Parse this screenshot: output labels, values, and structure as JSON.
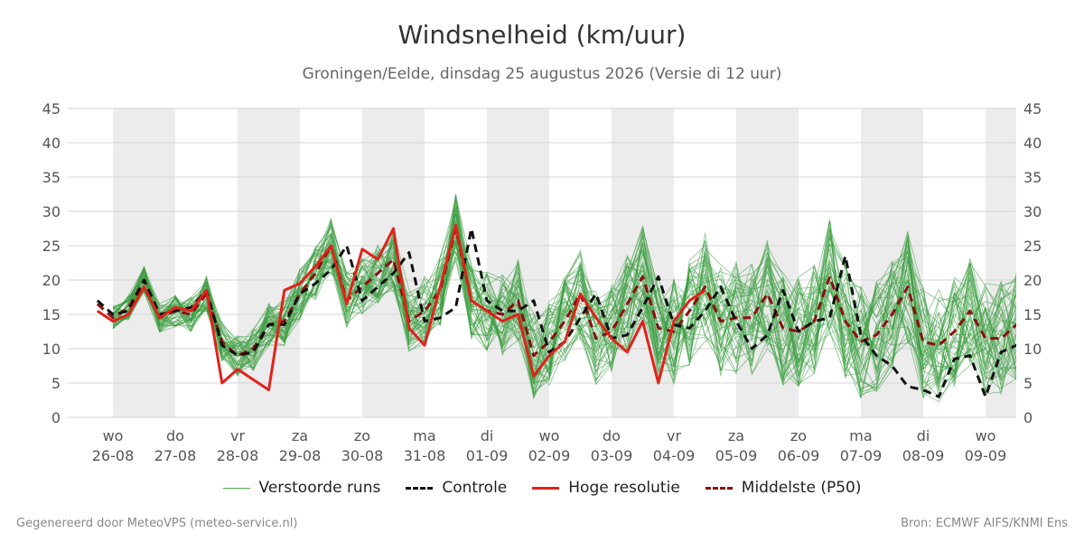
{
  "chart_data": {
    "type": "line",
    "title": "Windsnelheid (km/uur)",
    "subtitle": "Groningen/Eelde, dinsdag 25 augustus 2026 (Versie di 12 uur)",
    "ylim": [
      0,
      45
    ],
    "yticks": [
      0,
      5,
      10,
      15,
      20,
      25,
      30,
      35,
      40,
      45
    ],
    "xlim": [
      -0.25,
      14.98
    ],
    "grid": true,
    "shaded_weekend_bands": [
      [
        0,
        1
      ],
      [
        2,
        3
      ],
      [
        4,
        5
      ],
      [
        6,
        7
      ],
      [
        8,
        9
      ],
      [
        10,
        11
      ],
      [
        12,
        13
      ],
      [
        14,
        14.98
      ]
    ],
    "x_ticks": [
      {
        "day": "wo",
        "date": "26-08"
      },
      {
        "day": "do",
        "date": "27-08"
      },
      {
        "day": "vr",
        "date": "28-08"
      },
      {
        "day": "za",
        "date": "29-08"
      },
      {
        "day": "zo",
        "date": "30-08"
      },
      {
        "day": "ma",
        "date": "31-08"
      },
      {
        "day": "di",
        "date": "01-09"
      },
      {
        "day": "wo",
        "date": "02-09"
      },
      {
        "day": "do",
        "date": "03-09"
      },
      {
        "day": "vr",
        "date": "04-09"
      },
      {
        "day": "za",
        "date": "05-09"
      },
      {
        "day": "zo",
        "date": "06-09"
      },
      {
        "day": "ma",
        "date": "07-09"
      },
      {
        "day": "di",
        "date": "08-09"
      },
      {
        "day": "wo",
        "date": "09-09"
      }
    ],
    "x_step": 0.25,
    "x_start": -0.25,
    "series": [
      {
        "name": "Controle",
        "color": "#111111",
        "style": "dashed",
        "values": [
          17,
          15,
          15.5,
          20,
          15,
          15.5,
          16,
          18.5,
          10.5,
          9,
          9.5,
          13.5,
          13.5,
          18,
          19.5,
          21.5,
          25,
          17,
          19,
          21,
          24,
          14,
          14.5,
          16,
          27.5,
          17,
          15.5,
          15.5,
          17,
          9.5,
          11,
          14.5,
          18,
          11.5,
          12,
          16,
          20.5,
          13.5,
          13,
          15.5,
          19,
          14,
          10,
          12,
          18.5,
          12.5,
          14,
          14.5,
          23.5,
          12,
          9,
          7.5,
          4.5,
          4,
          3,
          8.5,
          9,
          3,
          9.5,
          10.5,
          10
        ]
      },
      {
        "name": "Hoge resolutie",
        "color": "#e0221b",
        "style": "solid",
        "values": [
          15.5,
          14,
          15,
          19,
          14.5,
          16,
          15.5,
          18.5,
          5,
          7,
          5.5,
          4,
          18.5,
          19.5,
          22,
          25,
          16.5,
          24.5,
          23,
          27.5,
          13,
          10.5,
          19,
          28,
          17,
          15.5,
          14,
          15,
          6,
          9,
          11,
          18,
          14.5,
          11.5,
          9.5,
          14,
          5,
          14,
          17,
          18.5
        ]
      },
      {
        "name": "Middelste (P50)",
        "color": "#8b1010",
        "style": "dashed",
        "values": [
          16.5,
          14.5,
          16,
          20,
          14.5,
          15.5,
          15,
          18,
          11,
          9,
          10,
          13.5,
          14,
          18,
          21,
          25,
          17,
          19,
          21,
          23,
          14,
          15.5,
          18.5,
          27.5,
          17,
          15.5,
          15,
          17,
          9,
          11,
          14,
          18,
          11.5,
          12.5,
          16.5,
          20.5,
          13,
          12.5,
          15.5,
          19,
          14,
          14.5,
          14.5,
          18,
          13,
          12.5,
          14,
          20.5,
          14,
          11,
          12,
          15,
          19,
          11,
          10.5,
          12.5,
          15.5,
          11.5,
          11.5,
          13.5,
          17.5
        ]
      }
    ],
    "ensemble": {
      "name": "Verstoorde runs",
      "color": "#3a9d3f",
      "members": 50
    }
  },
  "legend": {
    "members": "Verstoorde runs",
    "control": "Controle",
    "hires": "Hoge resolutie",
    "median": "Middelste (P50)"
  },
  "footer": {
    "left": "Gegenereerd door MeteoVPS (meteo-service.nl)",
    "right": "Bron: ECMWF AIFS/KNMI Ens"
  }
}
